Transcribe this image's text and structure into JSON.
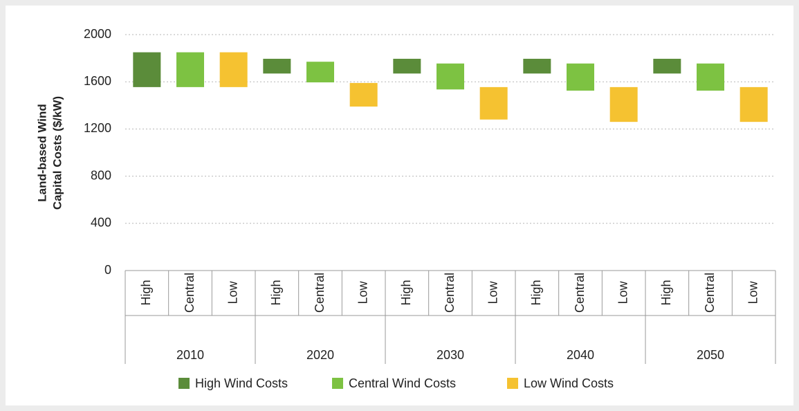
{
  "chart_data": {
    "type": "floating-bar",
    "y_label": [
      "Land-based Wind",
      "Capital Costs ($/kW)"
    ],
    "groups": [
      "2010",
      "2020",
      "2030",
      "2040",
      "2050"
    ],
    "subcategories": [
      "High",
      "Central",
      "Low"
    ],
    "series": [
      {
        "name": "High Wind Costs",
        "color": "#5b8c3a",
        "low": [
          1555,
          1670,
          1670,
          1670,
          1670
        ],
        "high": [
          1850,
          1795,
          1795,
          1795,
          1795
        ]
      },
      {
        "name": "Central Wind Costs",
        "color": "#7dc242",
        "low": [
          1555,
          1595,
          1535,
          1525,
          1525
        ],
        "high": [
          1850,
          1770,
          1755,
          1755,
          1755
        ]
      },
      {
        "name": "Low Wind Costs",
        "color": "#f5c231",
        "low": [
          1555,
          1390,
          1280,
          1260,
          1260
        ],
        "high": [
          1850,
          1590,
          1555,
          1555,
          1555
        ]
      }
    ],
    "ylim": [
      0,
      2000
    ],
    "yticks": [
      0,
      400,
      800,
      1200,
      1600,
      2000
    ],
    "grid": true,
    "legend": "bottom"
  }
}
